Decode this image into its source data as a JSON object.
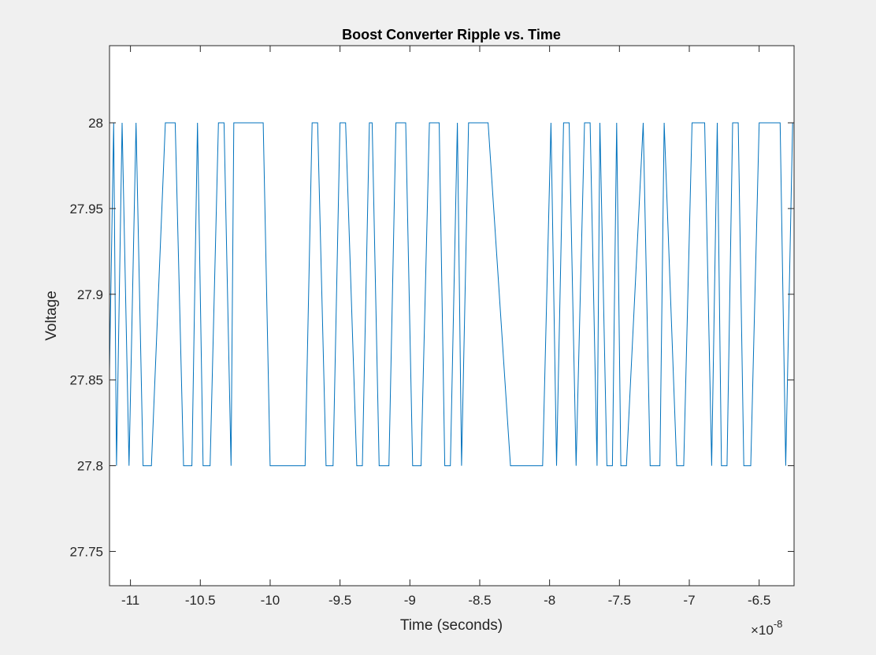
{
  "chart_data": {
    "type": "line",
    "title": "Boost Converter Ripple vs. Time",
    "xlabel": "Time (seconds)",
    "ylabel": "Voltage",
    "x_exponent_label": "×10",
    "x_exponent": "-8",
    "x_scale": 1e-08,
    "xlim": [
      -11.15,
      -6.25
    ],
    "ylim": [
      27.73,
      28.045
    ],
    "xticks": [
      -11,
      -10.5,
      -10,
      -9.5,
      -9,
      -8.5,
      -8,
      -7.5,
      -7,
      -6.5
    ],
    "xtick_labels": [
      "-11",
      "-10.5",
      "-10",
      "-9.5",
      "-9",
      "-8.5",
      "-8",
      "-7.5",
      "-7",
      "-6.5"
    ],
    "yticks": [
      27.75,
      27.8,
      27.85,
      27.9,
      27.95,
      28
    ],
    "ytick_labels": [
      "27.75",
      "27.8",
      "27.85",
      "27.9",
      "27.95",
      "28"
    ],
    "grid": false,
    "line_color": "#0072BD",
    "series": [
      {
        "x": [
          -11.15,
          -11.12,
          -11.1,
          -11.06,
          -11.01,
          -10.96,
          -10.91,
          -10.85,
          -10.75,
          -10.68,
          -10.62,
          -10.56,
          -10.52,
          -10.48,
          -10.43,
          -10.37,
          -10.33,
          -10.28,
          -10.26,
          -10.2,
          -10.05,
          -10.0,
          -9.75,
          -9.7,
          -9.66,
          -9.6,
          -9.55,
          -9.5,
          -9.46,
          -9.38,
          -9.34,
          -9.29,
          -9.27,
          -9.22,
          -9.15,
          -9.1,
          -9.03,
          -8.98,
          -8.92,
          -8.86,
          -8.79,
          -8.75,
          -8.71,
          -8.66,
          -8.63,
          -8.58,
          -8.51,
          -8.44,
          -8.28,
          -8.05,
          -7.99,
          -7.95,
          -7.9,
          -7.86,
          -7.81,
          -7.75,
          -7.71,
          -7.66,
          -7.64,
          -7.59,
          -7.55,
          -7.52,
          -7.49,
          -7.45,
          -7.33,
          -7.28,
          -7.21,
          -7.18,
          -7.09,
          -7.04,
          -6.98,
          -6.89,
          -6.84,
          -6.8,
          -6.77,
          -6.73,
          -6.69,
          -6.65,
          -6.61,
          -6.56,
          -6.5,
          -6.41,
          -6.35,
          -6.31,
          -6.26,
          -6.25
        ],
        "y": [
          27.855,
          28.0,
          27.8,
          28.0,
          27.8,
          28.0,
          27.8,
          27.8,
          28.0,
          28.0,
          27.8,
          27.8,
          28.0,
          27.8,
          27.8,
          28.0,
          28.0,
          27.8,
          28.0,
          28.0,
          28.0,
          27.8,
          27.8,
          28.0,
          28.0,
          27.8,
          27.8,
          28.0,
          28.0,
          27.8,
          27.8,
          28.0,
          28.0,
          27.8,
          27.8,
          28.0,
          28.0,
          27.8,
          27.8,
          28.0,
          28.0,
          27.8,
          27.8,
          28.0,
          27.8,
          28.0,
          28.0,
          28.0,
          27.8,
          27.8,
          28.0,
          27.8,
          28.0,
          28.0,
          27.8,
          28.0,
          28.0,
          27.8,
          28.0,
          27.8,
          27.8,
          28.0,
          27.8,
          27.8,
          28.0,
          27.8,
          27.8,
          28.0,
          27.8,
          27.8,
          28.0,
          28.0,
          27.8,
          28.0,
          27.8,
          27.8,
          28.0,
          28.0,
          27.8,
          27.8,
          28.0,
          28.0,
          28.0,
          27.8,
          28.0,
          28.0
        ]
      }
    ]
  }
}
